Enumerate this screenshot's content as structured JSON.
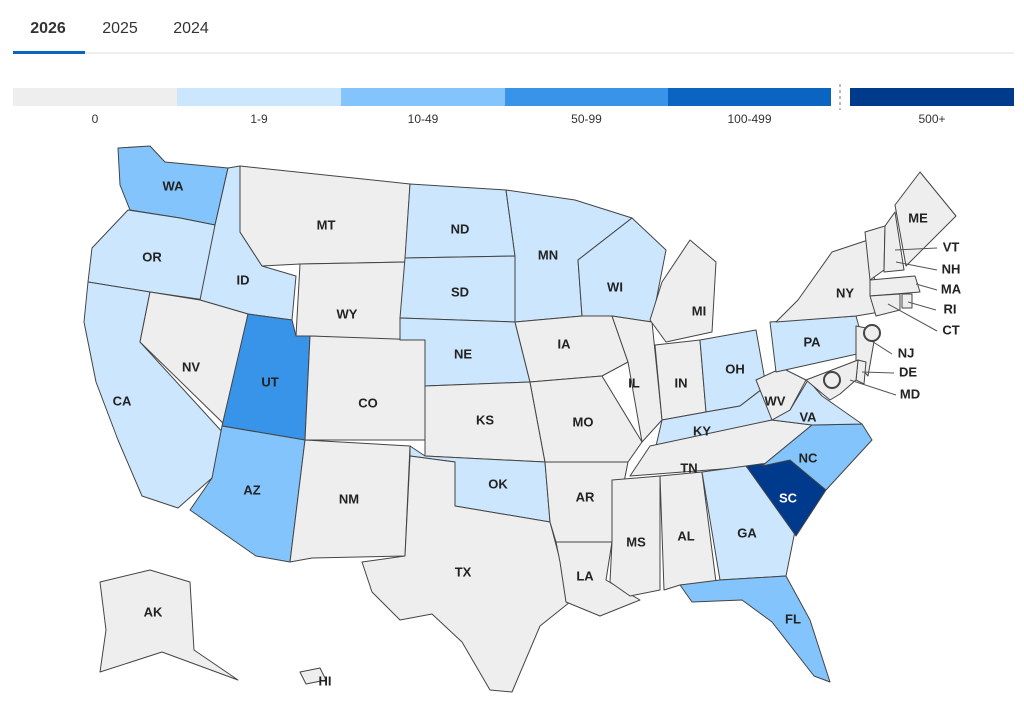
{
  "tabs": [
    {
      "label": "2026",
      "active": true
    },
    {
      "label": "2025",
      "active": false
    },
    {
      "label": "2024",
      "active": false
    }
  ],
  "legend": [
    {
      "label": "0",
      "color": "#eeeeee"
    },
    {
      "label": "1-9",
      "color": "#cce6fd"
    },
    {
      "label": "10-49",
      "color": "#82c4fb"
    },
    {
      "label": "50-99",
      "color": "#3894e8"
    },
    {
      "label": "100-499",
      "color": "#0a64c2"
    },
    {
      "label": "500+",
      "color": "#003a8c"
    }
  ],
  "states": [
    {
      "label": "WA",
      "bin": "10-49"
    },
    {
      "label": "OR",
      "bin": "1-9"
    },
    {
      "label": "CA",
      "bin": "1-9"
    },
    {
      "label": "ID",
      "bin": "1-9"
    },
    {
      "label": "NV",
      "bin": "0"
    },
    {
      "label": "MT",
      "bin": "0"
    },
    {
      "label": "WY",
      "bin": "0"
    },
    {
      "label": "UT",
      "bin": "50-99"
    },
    {
      "label": "CO",
      "bin": "0"
    },
    {
      "label": "AZ",
      "bin": "10-49"
    },
    {
      "label": "NM",
      "bin": "0"
    },
    {
      "label": "ND",
      "bin": "1-9"
    },
    {
      "label": "SD",
      "bin": "1-9"
    },
    {
      "label": "NE",
      "bin": "1-9"
    },
    {
      "label": "KS",
      "bin": "0"
    },
    {
      "label": "OK",
      "bin": "1-9"
    },
    {
      "label": "TX",
      "bin": "0"
    },
    {
      "label": "MN",
      "bin": "1-9"
    },
    {
      "label": "IA",
      "bin": "0"
    },
    {
      "label": "MO",
      "bin": "0"
    },
    {
      "label": "AR",
      "bin": "0"
    },
    {
      "label": "LA",
      "bin": "0"
    },
    {
      "label": "WI",
      "bin": "1-9"
    },
    {
      "label": "IL",
      "bin": "0"
    },
    {
      "label": "MI",
      "bin": "0"
    },
    {
      "label": "IN",
      "bin": "0"
    },
    {
      "label": "OH",
      "bin": "1-9"
    },
    {
      "label": "KY",
      "bin": "1-9"
    },
    {
      "label": "TN",
      "bin": "0"
    },
    {
      "label": "MS",
      "bin": "0"
    },
    {
      "label": "AL",
      "bin": "0"
    },
    {
      "label": "GA",
      "bin": "1-9"
    },
    {
      "label": "FL",
      "bin": "10-49"
    },
    {
      "label": "SC",
      "bin": "500+"
    },
    {
      "label": "NC",
      "bin": "10-49"
    },
    {
      "label": "VA",
      "bin": "1-9"
    },
    {
      "label": "WV",
      "bin": "0"
    },
    {
      "label": "PA",
      "bin": "1-9"
    },
    {
      "label": "NY",
      "bin": "0"
    },
    {
      "label": "VT",
      "bin": "0"
    },
    {
      "label": "NH",
      "bin": "0"
    },
    {
      "label": "ME",
      "bin": "0"
    },
    {
      "label": "MA",
      "bin": "0"
    },
    {
      "label": "RI",
      "bin": "0"
    },
    {
      "label": "CT",
      "bin": "0"
    },
    {
      "label": "NJ",
      "bin": "0"
    },
    {
      "label": "DE",
      "bin": "0"
    },
    {
      "label": "MD",
      "bin": "0"
    },
    {
      "label": "AK",
      "bin": "0"
    },
    {
      "label": "HI",
      "bin": "0"
    }
  ]
}
